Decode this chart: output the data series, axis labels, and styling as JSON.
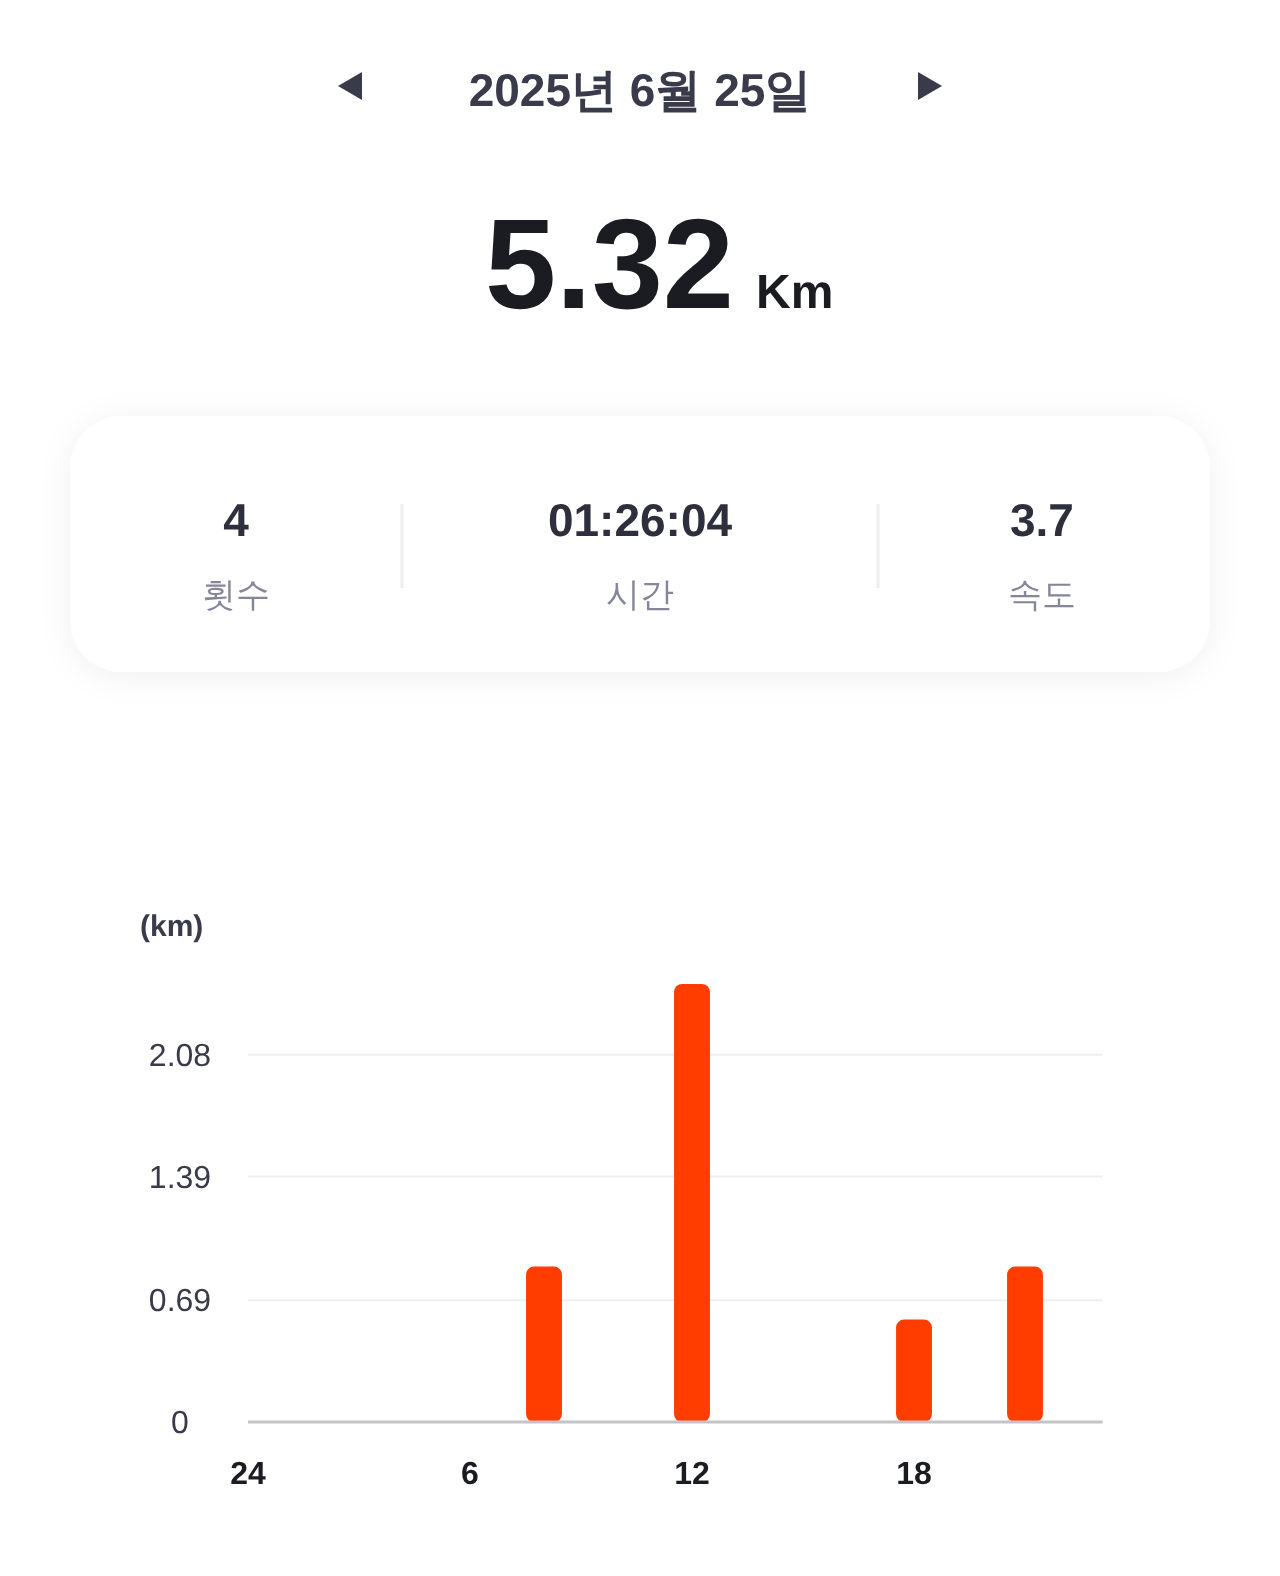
{
  "chart_data": {
    "type": "bar",
    "title": "2025년 6월 25일",
    "annotations": [
      "5.32",
      "Km",
      "4",
      "횟수",
      "01:26:04",
      "시간",
      "3.7",
      "속도"
    ],
    "ylabel": "(km)",
    "categories": [
      "24",
      null,
      null,
      null,
      null,
      null,
      "6",
      null,
      null,
      null,
      null,
      null,
      "12",
      null,
      null,
      null,
      null,
      null,
      "18",
      null,
      null,
      null,
      null,
      null
    ],
    "values": [
      null,
      null,
      null,
      null,
      null,
      null,
      null,
      null,
      0.88,
      null,
      null,
      null,
      2.48,
      null,
      null,
      null,
      null,
      null,
      0.58,
      null,
      null,
      0.88,
      null,
      null
    ],
    "color": "#ff3d00",
    "ylim": [
      0,
      2.48
    ],
    "yticks": [
      0,
      0.69,
      1.39,
      2.08
    ],
    "grid": "y"
  }
}
